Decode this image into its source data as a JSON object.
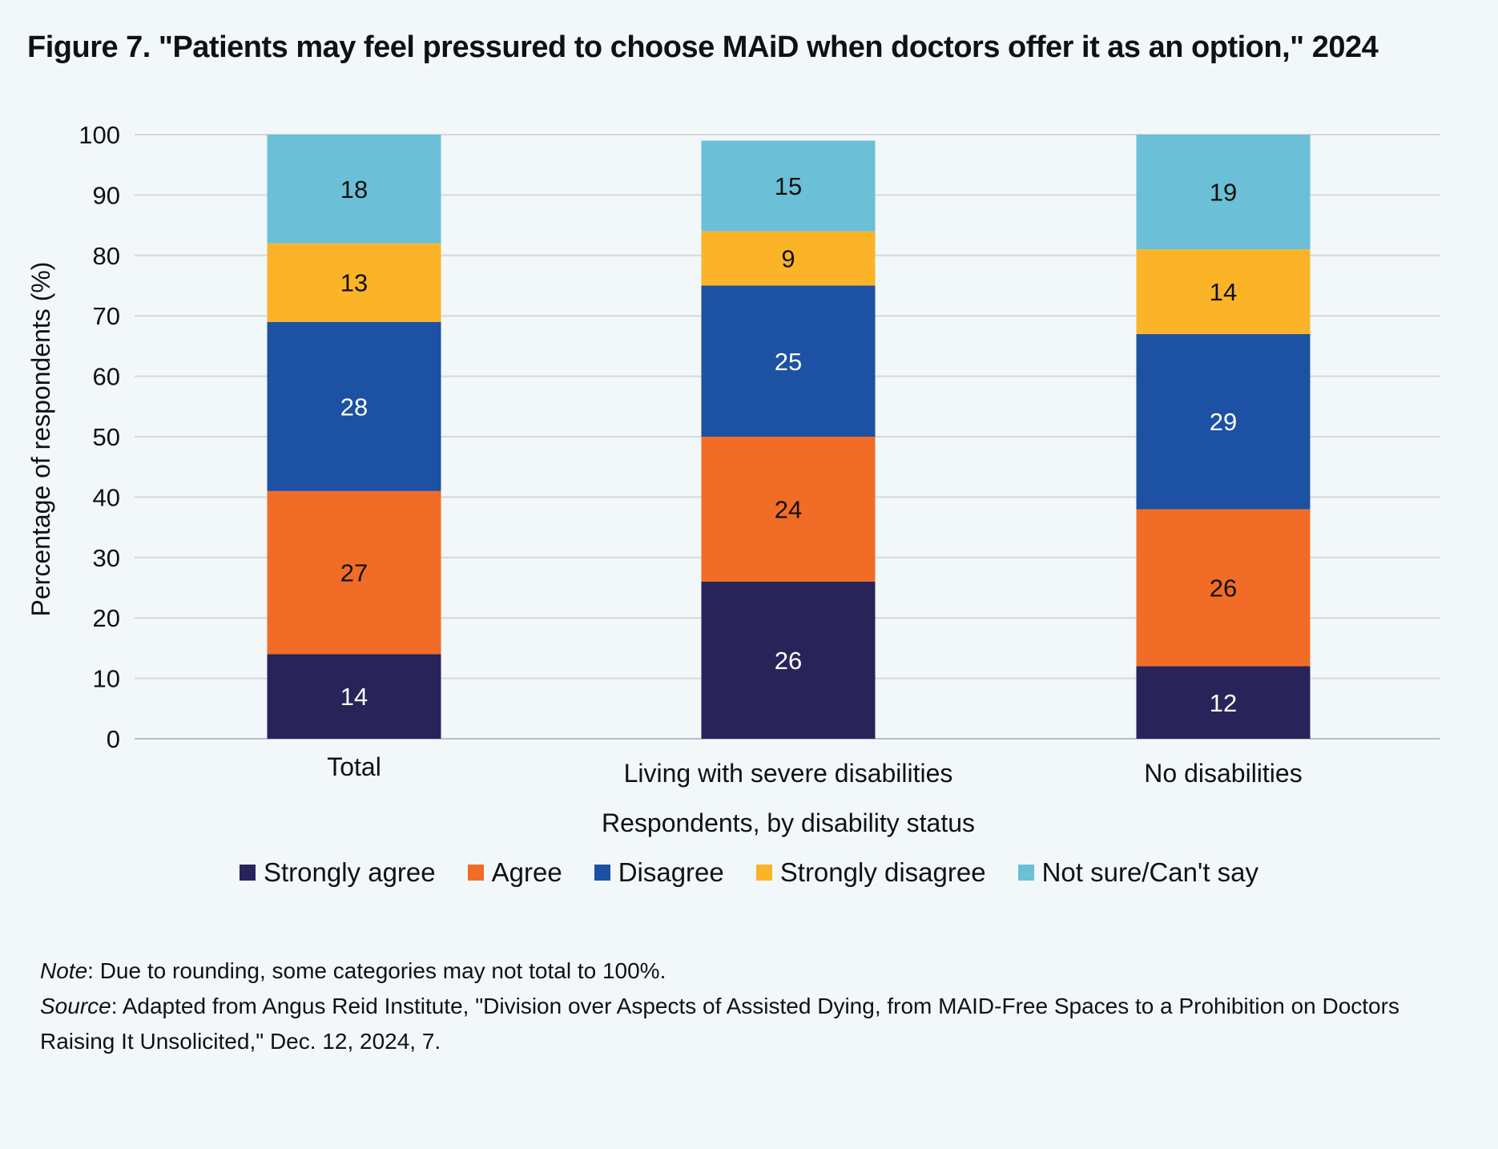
{
  "title": "Figure 7. \"Patients may feel pressured to choose MAiD when doctors offer it as an option,\" 2024",
  "chart_data": {
    "type": "bar",
    "stacked": true,
    "categories": [
      "Total",
      "Living with severe disabilities",
      "No disabilities"
    ],
    "series": [
      {
        "name": "Strongly agree",
        "color": "#28245a",
        "label_color": "#ffffff",
        "values": [
          14,
          26,
          12
        ]
      },
      {
        "name": "Agree",
        "color": "#f16c27",
        "label_color": "#111111",
        "values": [
          27,
          24,
          26
        ]
      },
      {
        "name": "Disagree",
        "color": "#1c51a3",
        "label_color": "#ffffff",
        "values": [
          28,
          25,
          29
        ]
      },
      {
        "name": "Strongly disagree",
        "color": "#fbb428",
        "label_color": "#111111",
        "values": [
          13,
          9,
          14
        ]
      },
      {
        "name": "Not sure/Can't say",
        "color": "#6bbfd6",
        "label_color": "#111111",
        "values": [
          18,
          15,
          19
        ]
      }
    ],
    "yticks": [
      0,
      10,
      20,
      30,
      40,
      50,
      60,
      70,
      80,
      90,
      100
    ],
    "ylim": [
      0,
      100
    ],
    "ylabel": "Percentage of respondents (%)",
    "xlabel": "Respondents, by disability status",
    "grid": true,
    "legend_position": "bottom"
  },
  "notes": {
    "note_key": "Note",
    "note_text": ": Due to rounding, some categories may not total to 100%.",
    "source_key": "Source",
    "source_text": ": Adapted from Angus Reid Institute, \"Division over Aspects of Assisted Dying, from MAID-Free Spaces to a Prohibition on Doctors Raising It Unsolicited,\" Dec. 12, 2024, 7."
  }
}
